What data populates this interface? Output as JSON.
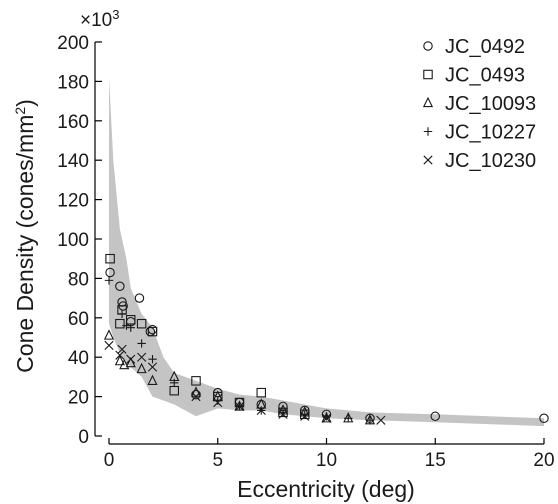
{
  "chart_data": {
    "type": "scatter",
    "title": "",
    "xlabel": "Eccentricity (deg)",
    "ylabel": "Cone Density (cones/mm",
    "ylabel_superscript": "2",
    "ylabel_close": ")",
    "y_multiplier_label": "×10",
    "y_multiplier_exponent": "3",
    "xlim": [
      0,
      20
    ],
    "ylim": [
      0,
      200
    ],
    "xticks": [
      0,
      5,
      10,
      15,
      20
    ],
    "yticks": [
      0,
      20,
      40,
      60,
      80,
      100,
      120,
      140,
      160,
      180,
      200
    ],
    "grid": false,
    "legend_position": "top-right",
    "band": {
      "fill": "#c4c4c4",
      "x": [
        0,
        0.2,
        0.5,
        0.8,
        1,
        1.5,
        2,
        2.5,
        3,
        4,
        5,
        6,
        7,
        8,
        9,
        10,
        12,
        15,
        20
      ],
      "lower": [
        57,
        50,
        42,
        37,
        35,
        30,
        20,
        18,
        16,
        10,
        14,
        13,
        13,
        11,
        10,
        9,
        8,
        7,
        5
      ],
      "upper": [
        182,
        140,
        105,
        90,
        75,
        62,
        55,
        40,
        32,
        28,
        24,
        21,
        20,
        18,
        16,
        14,
        12,
        11,
        9
      ]
    },
    "series": [
      {
        "name": "JC_0492",
        "marker": "circle",
        "points": [
          [
            0.05,
            83
          ],
          [
            0.5,
            76
          ],
          [
            0.6,
            68
          ],
          [
            0.65,
            66
          ],
          [
            1.0,
            58
          ],
          [
            1.4,
            70
          ],
          [
            1.9,
            53
          ],
          [
            2.0,
            54
          ],
          [
            4.0,
            21
          ],
          [
            5.0,
            22
          ],
          [
            6.0,
            17
          ],
          [
            7.0,
            16
          ],
          [
            8.0,
            15
          ],
          [
            9.0,
            13
          ],
          [
            10.0,
            11
          ],
          [
            12.0,
            9
          ],
          [
            15.0,
            10
          ],
          [
            20.0,
            9
          ]
        ]
      },
      {
        "name": "JC_0493",
        "marker": "square",
        "points": [
          [
            0.05,
            90
          ],
          [
            0.5,
            57
          ],
          [
            0.6,
            64
          ],
          [
            1.0,
            59
          ],
          [
            1.5,
            57
          ],
          [
            2.0,
            53
          ],
          [
            3.0,
            23
          ],
          [
            4.0,
            28
          ],
          [
            5.0,
            20
          ],
          [
            6.0,
            17
          ],
          [
            7.0,
            22
          ],
          [
            8.0,
            12
          ],
          [
            9.0,
            11
          ]
        ]
      },
      {
        "name": "JC_10093",
        "marker": "triangle",
        "points": [
          [
            0.0,
            51
          ],
          [
            0.5,
            38
          ],
          [
            0.7,
            36
          ],
          [
            1.0,
            37
          ],
          [
            1.5,
            34
          ],
          [
            2.0,
            28
          ],
          [
            3.0,
            30
          ],
          [
            4.0,
            22
          ],
          [
            5.0,
            20
          ],
          [
            6.0,
            15
          ],
          [
            7.0,
            16
          ],
          [
            8.0,
            13
          ],
          [
            9.0,
            12
          ],
          [
            10.0,
            9
          ],
          [
            11.0,
            9
          ],
          [
            12.0,
            8
          ]
        ]
      },
      {
        "name": "JC_10227",
        "marker": "plus",
        "points": [
          [
            0.0,
            79
          ],
          [
            0.6,
            62
          ],
          [
            0.8,
            56
          ],
          [
            1.0,
            55
          ],
          [
            1.5,
            47
          ],
          [
            2.0,
            39
          ],
          [
            3.0,
            27
          ],
          [
            5.0,
            18
          ],
          [
            6.0,
            15
          ],
          [
            7.0,
            13
          ],
          [
            8.0,
            12
          ],
          [
            9.0,
            11
          ],
          [
            10.0,
            10
          ],
          [
            11.0,
            9
          ],
          [
            12.0,
            8
          ]
        ]
      },
      {
        "name": "JC_10230",
        "marker": "cross",
        "points": [
          [
            0.0,
            46
          ],
          [
            0.5,
            41
          ],
          [
            0.6,
            44
          ],
          [
            1.0,
            39
          ],
          [
            1.5,
            40
          ],
          [
            2.0,
            35
          ],
          [
            4.0,
            20
          ],
          [
            5.0,
            17
          ],
          [
            6.0,
            15
          ],
          [
            7.0,
            13
          ],
          [
            8.0,
            11
          ],
          [
            9.0,
            10
          ],
          [
            10.0,
            9
          ],
          [
            12.5,
            8
          ]
        ]
      }
    ]
  }
}
